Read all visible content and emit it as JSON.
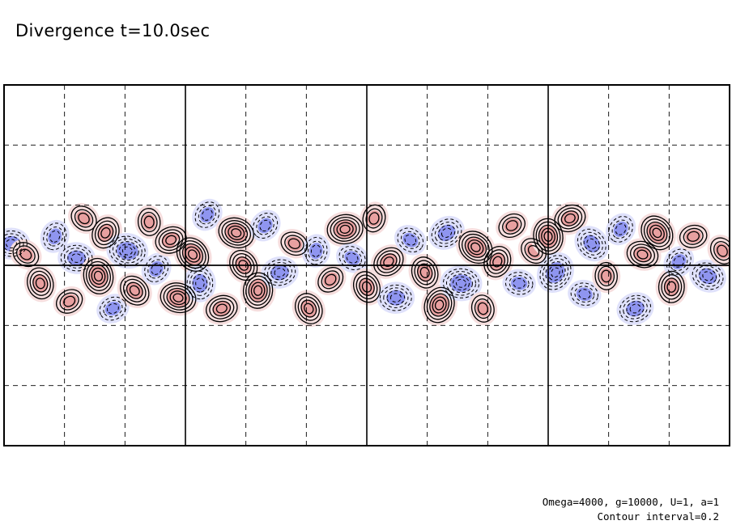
{
  "title": "Divergence t=10.0sec",
  "notes": {
    "params": "Omega=4000, g=10000, U=1, a=1",
    "contour": "Contour interval=0.2"
  },
  "chart_data": {
    "type": "contour",
    "title": "Divergence t=10.0sec",
    "xlabel": "",
    "ylabel": "",
    "grid": true,
    "grid_style": "dashed",
    "major_vertical_lines": 3,
    "vertical_grid_divisions": 12,
    "horizontal_grid_divisions": 6,
    "equator_line": true,
    "contour_interval": 0.2,
    "colors": {
      "positive_fill": "#e8a0a0",
      "positive_fill_light": "#f6dede",
      "negative_fill": "#8f95f0",
      "negative_fill_light": "#dfe1fb",
      "positive_line": "#000000",
      "negative_line": "#000000"
    },
    "features": [
      {
        "x": 0.01,
        "y": 0.06,
        "v": -0.8
      },
      {
        "x": 0.03,
        "y": 0.03,
        "v": 0.6
      },
      {
        "x": 0.05,
        "y": -0.05,
        "v": 0.8
      },
      {
        "x": 0.07,
        "y": 0.08,
        "v": -0.6
      },
      {
        "x": 0.09,
        "y": -0.1,
        "v": 0.6
      },
      {
        "x": 0.1,
        "y": 0.02,
        "v": -0.8
      },
      {
        "x": 0.11,
        "y": 0.13,
        "v": 0.6
      },
      {
        "x": 0.13,
        "y": -0.03,
        "v": 1.0
      },
      {
        "x": 0.14,
        "y": 0.09,
        "v": 0.8
      },
      {
        "x": 0.15,
        "y": -0.12,
        "v": -0.6
      },
      {
        "x": 0.17,
        "y": 0.04,
        "v": -1.0
      },
      {
        "x": 0.18,
        "y": -0.07,
        "v": 0.8
      },
      {
        "x": 0.2,
        "y": 0.12,
        "v": 0.6
      },
      {
        "x": 0.21,
        "y": -0.01,
        "v": -0.6
      },
      {
        "x": 0.23,
        "y": 0.07,
        "v": 0.8
      },
      {
        "x": 0.24,
        "y": -0.09,
        "v": 1.0
      },
      {
        "x": 0.26,
        "y": 0.03,
        "v": 1.0
      },
      {
        "x": 0.27,
        "y": -0.05,
        "v": -0.8
      },
      {
        "x": 0.28,
        "y": 0.14,
        "v": -0.6
      },
      {
        "x": 0.3,
        "y": -0.12,
        "v": 0.8
      },
      {
        "x": 0.32,
        "y": 0.09,
        "v": 1.0
      },
      {
        "x": 0.33,
        "y": 0.0,
        "v": 0.8
      },
      {
        "x": 0.35,
        "y": -0.07,
        "v": 1.0
      },
      {
        "x": 0.36,
        "y": 0.11,
        "v": -0.6
      },
      {
        "x": 0.38,
        "y": -0.02,
        "v": -0.8
      },
      {
        "x": 0.4,
        "y": 0.06,
        "v": 0.6
      },
      {
        "x": 0.42,
        "y": -0.12,
        "v": 0.8
      },
      {
        "x": 0.43,
        "y": 0.04,
        "v": -0.6
      },
      {
        "x": 0.45,
        "y": -0.04,
        "v": 0.6
      },
      {
        "x": 0.47,
        "y": 0.1,
        "v": 1.0
      },
      {
        "x": 0.48,
        "y": 0.02,
        "v": -0.6
      },
      {
        "x": 0.5,
        "y": -0.06,
        "v": 0.8
      },
      {
        "x": 0.51,
        "y": 0.13,
        "v": 0.6
      },
      {
        "x": 0.53,
        "y": 0.01,
        "v": 0.8
      },
      {
        "x": 0.54,
        "y": -0.09,
        "v": -0.8
      },
      {
        "x": 0.56,
        "y": 0.07,
        "v": -0.6
      },
      {
        "x": 0.58,
        "y": -0.02,
        "v": 0.8
      },
      {
        "x": 0.6,
        "y": -0.11,
        "v": 1.0
      },
      {
        "x": 0.61,
        "y": 0.09,
        "v": -0.8
      },
      {
        "x": 0.63,
        "y": -0.05,
        "v": -1.0
      },
      {
        "x": 0.65,
        "y": 0.05,
        "v": 1.0
      },
      {
        "x": 0.66,
        "y": -0.12,
        "v": 0.6
      },
      {
        "x": 0.68,
        "y": 0.01,
        "v": 0.8
      },
      {
        "x": 0.7,
        "y": 0.11,
        "v": 0.6
      },
      {
        "x": 0.71,
        "y": -0.05,
        "v": -0.6
      },
      {
        "x": 0.73,
        "y": 0.04,
        "v": 0.6
      },
      {
        "x": 0.75,
        "y": 0.08,
        "v": 1.0
      },
      {
        "x": 0.76,
        "y": -0.02,
        "v": -1.0
      },
      {
        "x": 0.78,
        "y": 0.13,
        "v": 0.8
      },
      {
        "x": 0.8,
        "y": -0.08,
        "v": -0.6
      },
      {
        "x": 0.81,
        "y": 0.06,
        "v": -0.8
      },
      {
        "x": 0.83,
        "y": -0.03,
        "v": 0.6
      },
      {
        "x": 0.85,
        "y": 0.1,
        "v": -0.6
      },
      {
        "x": 0.87,
        "y": -0.12,
        "v": -0.8
      },
      {
        "x": 0.88,
        "y": 0.03,
        "v": 0.8
      },
      {
        "x": 0.9,
        "y": 0.09,
        "v": 1.0
      },
      {
        "x": 0.92,
        "y": -0.06,
        "v": 0.8
      },
      {
        "x": 0.93,
        "y": 0.01,
        "v": -0.6
      },
      {
        "x": 0.95,
        "y": 0.08,
        "v": 0.6
      },
      {
        "x": 0.97,
        "y": -0.03,
        "v": -0.8
      },
      {
        "x": 0.99,
        "y": 0.04,
        "v": 0.6
      }
    ]
  }
}
